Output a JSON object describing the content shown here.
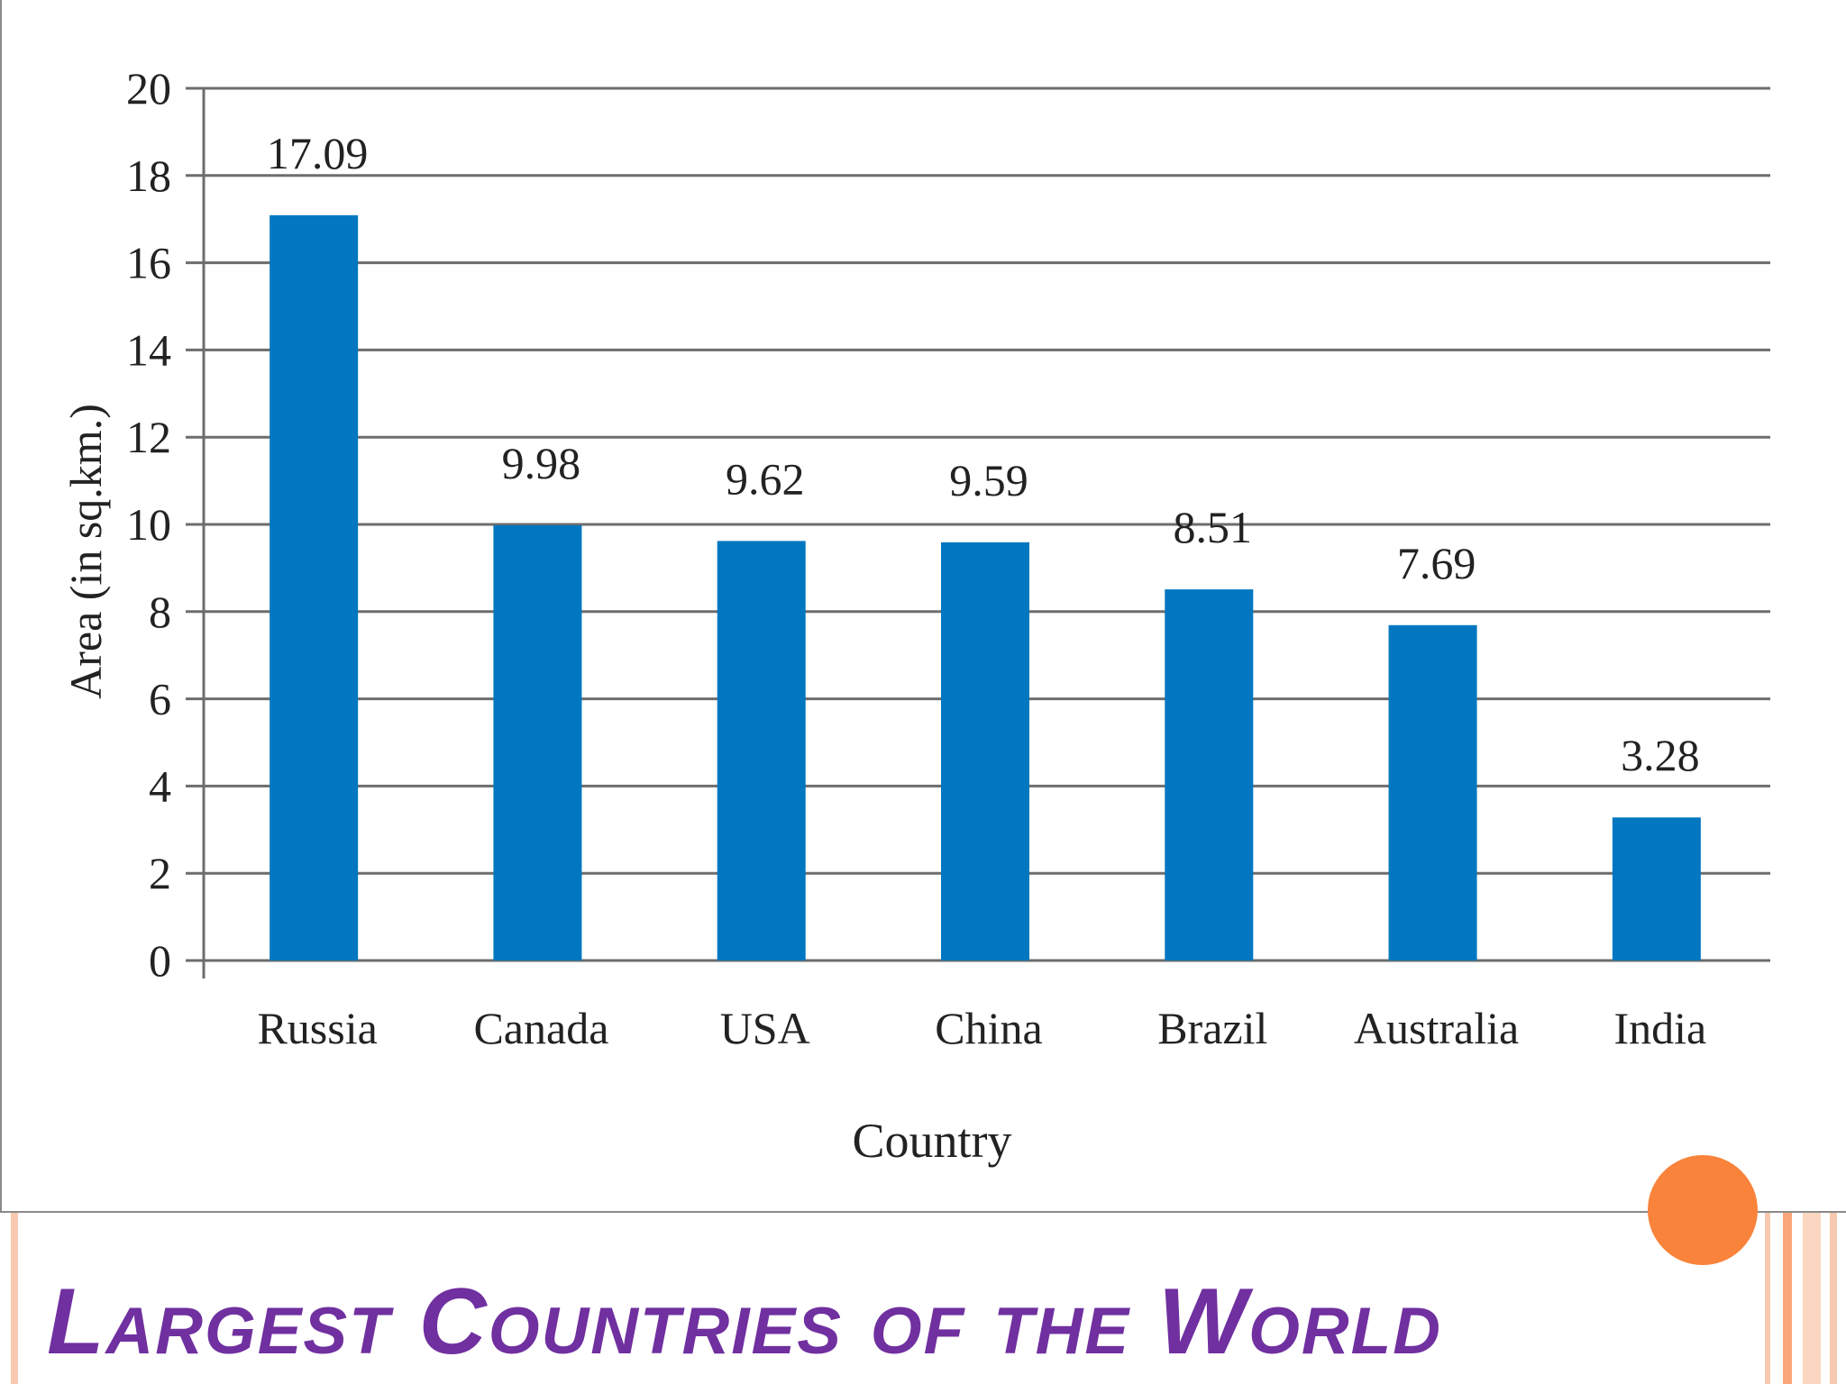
{
  "slide": {
    "title": "Largest Countries of the World",
    "title_color": "#7030a0",
    "accent_color": "#f9833a"
  },
  "chart_data": {
    "type": "bar",
    "categories": [
      "Russia",
      "Canada",
      "USA",
      "China",
      "Brazil",
      "Australia",
      "India"
    ],
    "values": [
      17.09,
      9.98,
      9.62,
      9.59,
      8.51,
      7.69,
      3.28
    ],
    "value_labels": [
      "17.09",
      "9.98",
      "9.62",
      "9.59",
      "8.51",
      "7.69",
      "3.28"
    ],
    "xlabel": "Country",
    "ylabel": "Area (in sq.km.)",
    "ylim": [
      0,
      20
    ],
    "yticks": [
      0,
      2,
      4,
      6,
      8,
      10,
      12,
      14,
      16,
      18,
      20
    ],
    "grid": true,
    "bar_color": "#0077c0"
  }
}
